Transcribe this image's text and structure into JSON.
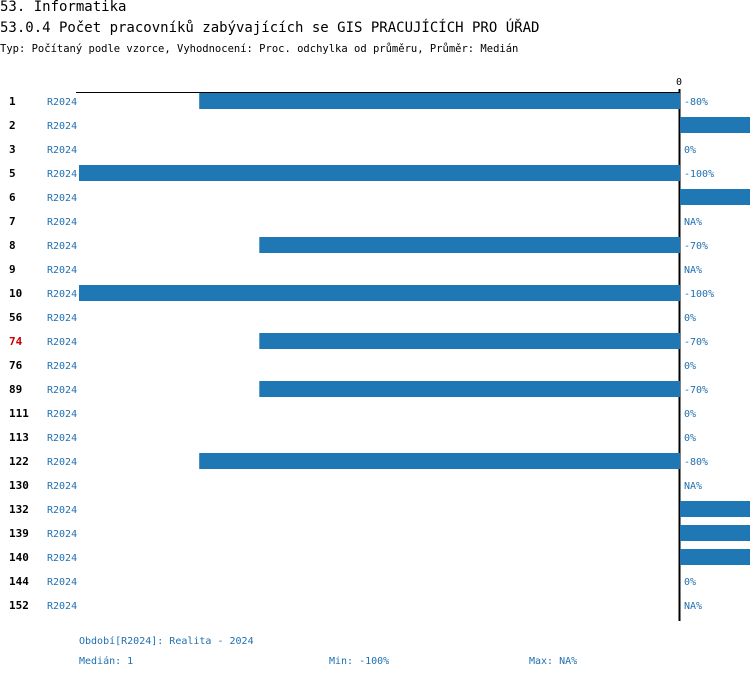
{
  "header": {
    "title": "53. Informatika",
    "subtitle": "53.0.4 Počet pracovníků zabývajících se GIS PRACUJÍCÍCH PRO ÚŘAD",
    "type_line": "Typ: Počítaný podle vzorce, Vyhodnocení: Proc. odchylka od průměru, Průměr: Medián"
  },
  "chart_data": {
    "type": "bar",
    "orientation": "horizontal",
    "title": "53.0.4 Počet pracovníků zabývajících se GIS PRACUJÍCÍCH PRO ÚŘAD",
    "zero_label": "0",
    "period_code": "R2024",
    "xlim": [
      -100,
      12
    ],
    "highlight_color": "#cc0000",
    "bar_color": "#1f77b4",
    "categories": [
      "1",
      "2",
      "3",
      "5",
      "6",
      "7",
      "8",
      "9",
      "10",
      "56",
      "74",
      "76",
      "89",
      "111",
      "113",
      "122",
      "130",
      "132",
      "139",
      "140",
      "144",
      "152"
    ],
    "highlighted": [
      "74"
    ],
    "values": [
      -80,
      12,
      0,
      -100,
      12,
      null,
      -70,
      null,
      -100,
      0,
      -70,
      0,
      -70,
      0,
      0,
      -80,
      null,
      12,
      12,
      12,
      0,
      null
    ],
    "labels": [
      "-80%",
      "",
      "0%",
      "-100%",
      "",
      "NA%",
      "-70%",
      "NA%",
      "-100%",
      "0%",
      "-70%",
      "0%",
      "-70%",
      "0%",
      "0%",
      "-80%",
      "NA%",
      "",
      "",
      "",
      "0%",
      "NA%"
    ]
  },
  "footer": {
    "period_legend": "Období[R2024]: Realita - 2024",
    "median": "Medián: 1",
    "min": "Min: -100%",
    "max": "Max: NA%"
  }
}
